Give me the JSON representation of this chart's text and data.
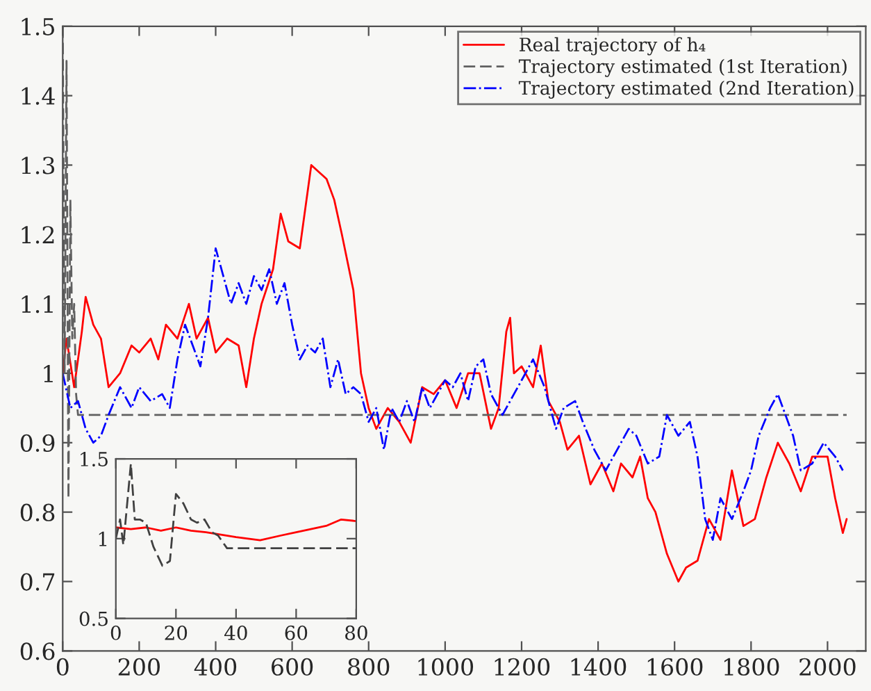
{
  "chart_data": [
    {
      "type": "line",
      "xlim": [
        0,
        2100
      ],
      "ylim": [
        0.6,
        1.5
      ],
      "xticks": [
        0,
        200,
        400,
        600,
        800,
        1000,
        1200,
        1400,
        1600,
        1800,
        2000
      ],
      "yticks": [
        0.6,
        0.7,
        0.8,
        0.9,
        1,
        1.1,
        1.2,
        1.3,
        1.4,
        1.5
      ],
      "grid": false,
      "legend": "top right",
      "marker": "none",
      "series": [
        {
          "name": "Real trajectory of h₄",
          "color": "#ff0000",
          "line_style": "solid",
          "x": [
            0,
            10,
            30,
            50,
            60,
            80,
            100,
            120,
            150,
            180,
            200,
            230,
            250,
            270,
            300,
            330,
            350,
            380,
            400,
            430,
            460,
            480,
            500,
            520,
            550,
            570,
            590,
            620,
            650,
            670,
            690,
            710,
            730,
            760,
            780,
            800,
            820,
            850,
            880,
            910,
            940,
            970,
            1000,
            1030,
            1060,
            1090,
            1120,
            1140,
            1160,
            1170,
            1180,
            1200,
            1230,
            1250,
            1270,
            1300,
            1320,
            1350,
            1380,
            1410,
            1440,
            1460,
            1490,
            1510,
            1530,
            1550,
            1580,
            1610,
            1630,
            1660,
            1690,
            1720,
            1750,
            1780,
            1810,
            1840,
            1870,
            1900,
            1930,
            1960,
            2000,
            2020,
            2040,
            2050
          ],
          "values": [
            1.0,
            1.05,
            0.98,
            1.06,
            1.11,
            1.07,
            1.05,
            0.98,
            1.0,
            1.04,
            1.03,
            1.05,
            1.02,
            1.07,
            1.05,
            1.1,
            1.05,
            1.08,
            1.03,
            1.05,
            1.04,
            0.98,
            1.05,
            1.1,
            1.15,
            1.23,
            1.19,
            1.18,
            1.3,
            1.29,
            1.28,
            1.25,
            1.2,
            1.12,
            1.0,
            0.95,
            0.92,
            0.95,
            0.93,
            0.9,
            0.98,
            0.97,
            0.99,
            0.95,
            1.0,
            1.0,
            0.92,
            0.95,
            1.06,
            1.08,
            1.0,
            1.01,
            0.98,
            1.04,
            0.96,
            0.93,
            0.89,
            0.91,
            0.84,
            0.87,
            0.83,
            0.87,
            0.85,
            0.88,
            0.82,
            0.8,
            0.74,
            0.7,
            0.72,
            0.73,
            0.79,
            0.76,
            0.86,
            0.78,
            0.79,
            0.85,
            0.9,
            0.87,
            0.83,
            0.88,
            0.88,
            0.82,
            0.77,
            0.79
          ]
        },
        {
          "name": "Trajectory estimated (1st Iteration)",
          "color": "#606060",
          "line_style": "dashed",
          "x": [
            0,
            5,
            10,
            15,
            20,
            25,
            30,
            35,
            40,
            2050
          ],
          "values": [
            1.5,
            1.0,
            1.45,
            0.82,
            1.25,
            1.05,
            1.1,
            0.97,
            0.94,
            0.94
          ]
        },
        {
          "name": "Trajectory estimated (2nd Iteration)",
          "color": "#0000ff",
          "line_style": "dashdot",
          "x": [
            0,
            20,
            40,
            60,
            80,
            100,
            120,
            150,
            180,
            200,
            230,
            260,
            280,
            300,
            320,
            340,
            360,
            380,
            400,
            420,
            440,
            460,
            480,
            500,
            520,
            540,
            560,
            580,
            600,
            620,
            640,
            660,
            680,
            700,
            720,
            740,
            760,
            780,
            800,
            820,
            840,
            860,
            880,
            900,
            920,
            940,
            960,
            1000,
            1020,
            1040,
            1060,
            1080,
            1100,
            1120,
            1150,
            1180,
            1200,
            1230,
            1260,
            1290,
            1310,
            1340,
            1360,
            1390,
            1420,
            1450,
            1480,
            1500,
            1530,
            1560,
            1580,
            1610,
            1640,
            1660,
            1680,
            1700,
            1720,
            1750,
            1780,
            1800,
            1820,
            1850,
            1870,
            1890,
            1910,
            1930,
            1960,
            1990,
            2020,
            2040
          ],
          "values": [
            1.0,
            0.95,
            0.96,
            0.92,
            0.9,
            0.91,
            0.94,
            0.98,
            0.95,
            0.98,
            0.96,
            0.97,
            0.95,
            1.02,
            1.07,
            1.04,
            1.01,
            1.08,
            1.18,
            1.14,
            1.1,
            1.13,
            1.1,
            1.14,
            1.12,
            1.15,
            1.1,
            1.13,
            1.07,
            1.02,
            1.04,
            1.03,
            1.05,
            0.98,
            1.02,
            0.97,
            0.98,
            0.97,
            0.93,
            0.95,
            0.89,
            0.95,
            0.93,
            0.96,
            0.93,
            0.98,
            0.95,
            0.99,
            0.98,
            1.0,
            0.96,
            1.01,
            1.02,
            0.97,
            0.94,
            0.97,
            0.99,
            1.02,
            0.98,
            0.92,
            0.95,
            0.96,
            0.93,
            0.89,
            0.86,
            0.89,
            0.92,
            0.91,
            0.87,
            0.88,
            0.94,
            0.91,
            0.93,
            0.88,
            0.79,
            0.76,
            0.82,
            0.79,
            0.83,
            0.86,
            0.91,
            0.95,
            0.97,
            0.94,
            0.91,
            0.86,
            0.87,
            0.9,
            0.88,
            0.86
          ]
        }
      ]
    },
    {
      "type": "line",
      "xlim": [
        0,
        80
      ],
      "ylim": [
        0.5,
        1.5
      ],
      "xticks": [
        0,
        20,
        40,
        60,
        80
      ],
      "yticks": [
        0.5,
        1,
        1.5
      ],
      "grid": false,
      "legend": false,
      "marker": "none",
      "series": [
        {
          "color": "#ff0000",
          "line_style": "solid",
          "x": [
            0,
            5,
            10,
            15,
            20,
            25,
            30,
            40,
            48,
            55,
            60,
            70,
            75,
            80
          ],
          "values": [
            1.07,
            1.06,
            1.07,
            1.05,
            1.07,
            1.05,
            1.04,
            1.01,
            0.99,
            1.02,
            1.04,
            1.08,
            1.12,
            1.11
          ]
        },
        {
          "color": "#404040",
          "line_style": "dashed",
          "x": [
            0,
            1.4,
            2.5,
            5,
            6.3,
            8,
            10,
            12.5,
            15.5,
            18,
            20,
            22.5,
            25,
            27,
            29.5,
            32,
            34,
            37,
            80
          ],
          "values": [
            1.0,
            1.12,
            0.96,
            1.47,
            1.12,
            1.12,
            1.1,
            0.95,
            0.83,
            0.86,
            1.28,
            1.22,
            1.12,
            1.1,
            1.12,
            1.04,
            1.02,
            0.94,
            0.94
          ]
        }
      ]
    }
  ]
}
